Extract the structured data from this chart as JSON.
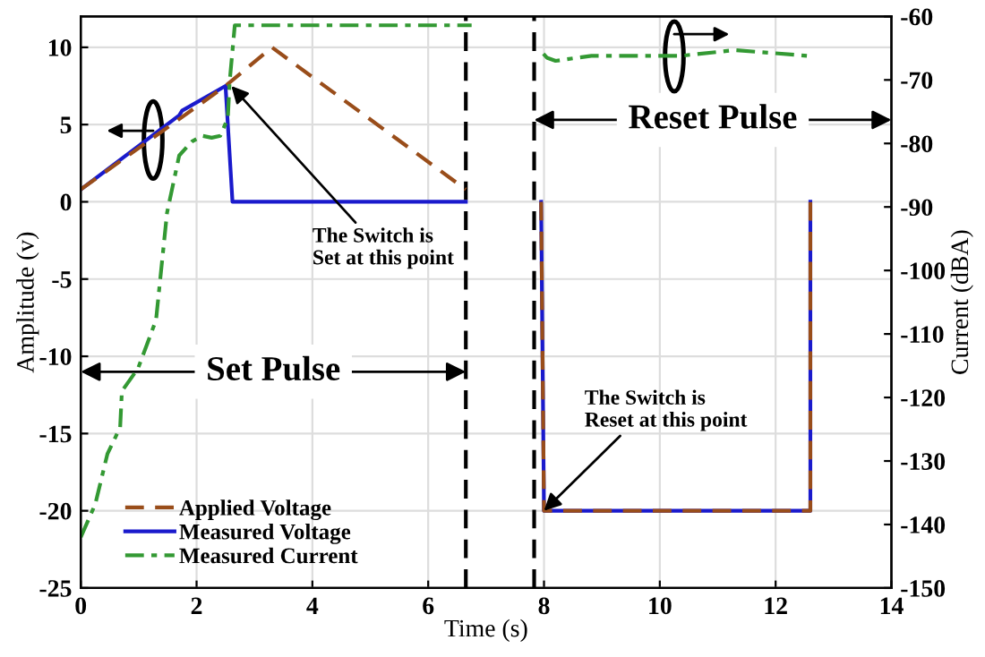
{
  "chart_data": {
    "type": "line",
    "xlabel": "Time (s)",
    "ylabel": "Amplitude (v)",
    "y2label": "Current (dBA)",
    "xlim": [
      0,
      14
    ],
    "xticks": [
      0,
      2,
      4,
      6,
      8,
      10,
      12,
      14
    ],
    "ylim": [
      -25,
      12
    ],
    "yticks": [
      -25,
      -20,
      -15,
      -10,
      -5,
      0,
      5,
      10
    ],
    "y2lim": [
      -150,
      -60
    ],
    "y2ticks": [
      -150,
      -140,
      -130,
      -120,
      -110,
      -100,
      -90,
      -80,
      -70,
      -60
    ],
    "grid": true,
    "legend": "bottom left",
    "series": [
      {
        "name": "Applied Voltage",
        "color": "#994d1a",
        "line_style": "dashed",
        "x": [
          0,
          2.5,
          3.3,
          6.65,
          null,
          7.95,
          8.0,
          12.6,
          12.6
        ],
        "values": [
          0.8,
          7.5,
          10,
          0.8,
          null,
          0,
          -20,
          -20,
          0
        ]
      },
      {
        "name": "Measured Voltage",
        "color": "#1a1acc",
        "line_style": "solid",
        "x": [
          0,
          1.7,
          1.75,
          2.5,
          2.62,
          6.65,
          null,
          7.95,
          8.0,
          12.6,
          12.6
        ],
        "values": [
          0.8,
          5.6,
          5.9,
          7.5,
          0,
          0,
          null,
          0,
          -20,
          -20,
          0
        ]
      },
      {
        "name": "Measured Current",
        "color": "#339933",
        "line_style": "dashdot",
        "axis": "y2",
        "x": [
          0,
          0.25,
          0.46,
          0.68,
          0.71,
          0.99,
          1.3,
          1.49,
          1.7,
          1.92,
          2.1,
          2.26,
          2.41,
          2.54,
          2.57,
          2.66,
          6.75,
          null,
          7.99,
          8.05,
          8.2,
          8.82,
          10.37,
          11.3,
          12.54
        ],
        "values": [
          -142,
          -136.8,
          -128.9,
          -124.7,
          -119,
          -115.4,
          -107.8,
          -90.9,
          -81.9,
          -79.7,
          -78.8,
          -79.1,
          -78.8,
          -76,
          -70.4,
          -61.4,
          -61.4,
          null,
          -65.9,
          -66.5,
          -67,
          -66.2,
          -66.2,
          -65.3,
          -66.2
        ]
      }
    ],
    "ref_lines": [
      {
        "axis": "x",
        "value": 6.65,
        "color": "#000000",
        "line_style": "dashed"
      },
      {
        "axis": "x",
        "value": 7.83,
        "color": "#000000",
        "line_style": "dashed"
      }
    ],
    "annotations": [
      {
        "text": "The Switch is\nSet at this point",
        "x": 2.6,
        "y": 7.5
      },
      {
        "text": "The Switch is\nReset at this point",
        "x": 8.0,
        "y": -20
      },
      {
        "text": "Set Pulse",
        "x": 6.65,
        "y": -11
      },
      {
        "text": "Reset Pulse",
        "x": 7.83,
        "y": 5.3
      }
    ]
  }
}
